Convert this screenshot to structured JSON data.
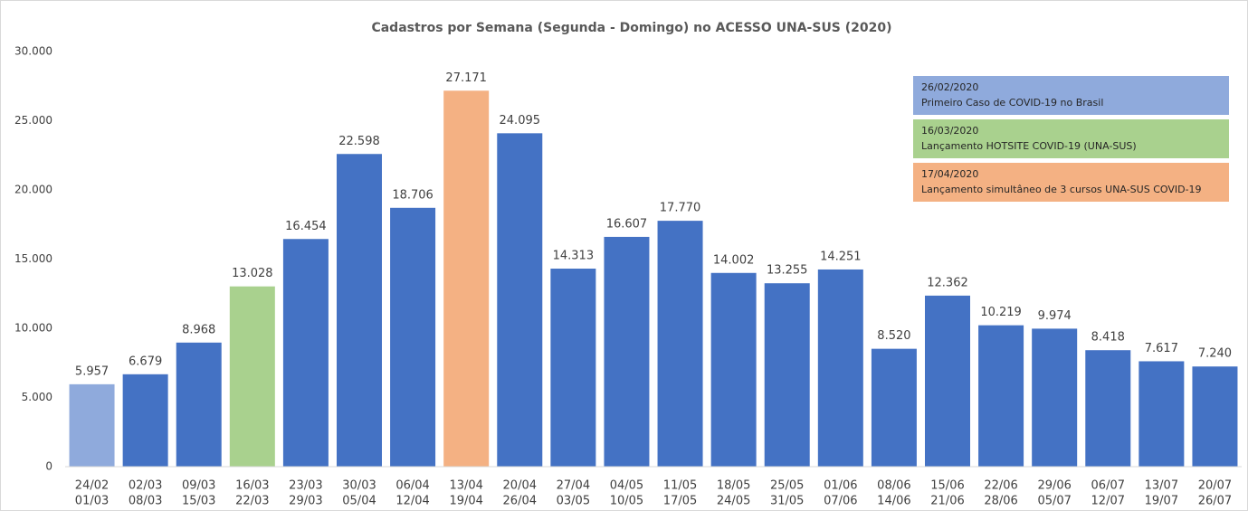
{
  "chart_data": {
    "type": "bar",
    "title": "Cadastros por Semana (Segunda - Domingo) no ACESSO UNA-SUS (2020)",
    "categories": [
      [
        "24/02",
        "01/03"
      ],
      [
        "02/03",
        "08/03"
      ],
      [
        "09/03",
        "15/03"
      ],
      [
        "16/03",
        "22/03"
      ],
      [
        "23/03",
        "29/03"
      ],
      [
        "30/03",
        "05/04"
      ],
      [
        "06/04",
        "12/04"
      ],
      [
        "13/04",
        "19/04"
      ],
      [
        "20/04",
        "26/04"
      ],
      [
        "27/04",
        "03/05"
      ],
      [
        "04/05",
        "10/05"
      ],
      [
        "11/05",
        "17/05"
      ],
      [
        "18/05",
        "24/05"
      ],
      [
        "25/05",
        "31/05"
      ],
      [
        "01/06",
        "07/06"
      ],
      [
        "08/06",
        "14/06"
      ],
      [
        "15/06",
        "21/06"
      ],
      [
        "22/06",
        "28/06"
      ],
      [
        "29/06",
        "05/07"
      ],
      [
        "06/07",
        "12/07"
      ],
      [
        "13/07",
        "19/07"
      ],
      [
        "20/07",
        "26/07"
      ]
    ],
    "values": [
      5957,
      6679,
      8968,
      13028,
      16454,
      22598,
      18706,
      27171,
      24095,
      14313,
      16607,
      17770,
      14002,
      13255,
      14251,
      8520,
      12362,
      10219,
      9974,
      8418,
      7617,
      7240
    ],
    "value_labels": [
      "5.957",
      "6.679",
      "8.968",
      "13.028",
      "16.454",
      "22.598",
      "18.706",
      "27.171",
      "24.095",
      "14.313",
      "16.607",
      "17.770",
      "14.002",
      "13.255",
      "14.251",
      "8.520",
      "12.362",
      "10.219",
      "9.974",
      "8.418",
      "7.617",
      "7.240"
    ],
    "colors": [
      "#8faadc",
      "#4472c4",
      "#4472c4",
      "#a9d18e",
      "#4472c4",
      "#4472c4",
      "#4472c4",
      "#f4b183",
      "#4472c4",
      "#4472c4",
      "#4472c4",
      "#4472c4",
      "#4472c4",
      "#4472c4",
      "#4472c4",
      "#4472c4",
      "#4472c4",
      "#4472c4",
      "#4472c4",
      "#4472c4",
      "#4472c4",
      "#4472c4"
    ],
    "ylim": [
      0,
      30000
    ],
    "yticks": [
      0,
      {
        "value": 5000,
        "label": "5.000"
      },
      {
        "value": 10000,
        "label": "10.000"
      },
      {
        "value": 15000,
        "label": "15.000"
      },
      {
        "value": 20000,
        "label": "20.000"
      },
      {
        "value": 25000,
        "label": "25.000"
      },
      {
        "value": 30000,
        "label": "30.000"
      }
    ],
    "annotations": [
      {
        "date": "26/02/2020",
        "text": "Primeiro Caso de COVID-19 no Brasil",
        "color": "#8faadc"
      },
      {
        "date": "16/03/2020",
        "text": "Lançamento HOTSITE COVID-19 (UNA-SUS)",
        "color": "#a9d18e"
      },
      {
        "date": "17/04/2020",
        "text": "Lançamento simultâneo de 3 cursos UNA-SUS COVID-19",
        "color": "#f4b183"
      }
    ]
  }
}
